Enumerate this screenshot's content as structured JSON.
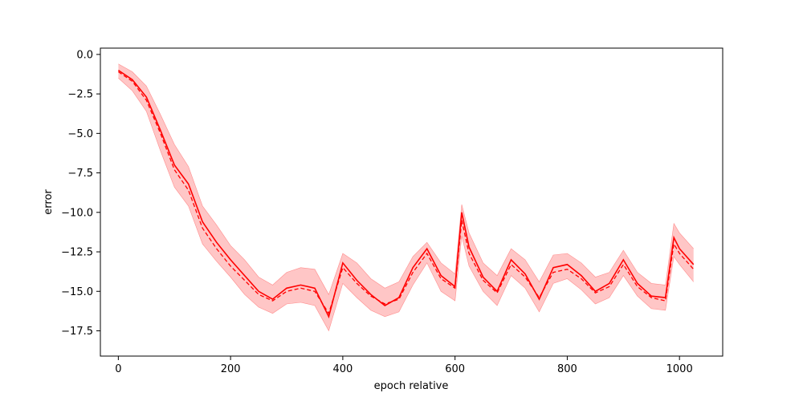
{
  "chart_data": {
    "type": "line",
    "title": "",
    "xlabel": "epoch relative",
    "ylabel": "error",
    "xlim": [
      -32,
      1077
    ],
    "ylim": [
      -19.1,
      0.4
    ],
    "xticks": [
      0,
      200,
      400,
      600,
      800,
      1000
    ],
    "xtick_labels": [
      "0",
      "200",
      "400",
      "600",
      "800",
      "1000"
    ],
    "yticks": [
      0.0,
      -2.5,
      -5.0,
      -7.5,
      -10.0,
      -12.5,
      -15.0,
      -17.5
    ],
    "ytick_labels": [
      "0.0",
      "−2.5",
      "−5.0",
      "−7.5",
      "−10.0",
      "−12.5",
      "−15.0",
      "−17.5"
    ],
    "grid": false,
    "colors": {
      "main": "#ff0000",
      "band": "#ffbcbc",
      "thin": "#ff6a6a"
    },
    "x": [
      0,
      25,
      50,
      75,
      100,
      125,
      150,
      175,
      200,
      225,
      250,
      275,
      300,
      325,
      350,
      375,
      400,
      425,
      450,
      475,
      500,
      525,
      550,
      575,
      600,
      612,
      625,
      650,
      675,
      700,
      725,
      750,
      775,
      800,
      825,
      850,
      875,
      900,
      925,
      950,
      975,
      990,
      1000,
      1025
    ],
    "series": [
      {
        "role": "median",
        "values": [
          -1.0,
          -1.6,
          -2.7,
          -4.8,
          -7.0,
          -8.2,
          -10.6,
          -11.9,
          -13.0,
          -14.0,
          -15.0,
          -15.5,
          -14.8,
          -14.6,
          -14.8,
          -16.6,
          -13.2,
          -14.3,
          -15.2,
          -15.9,
          -15.4,
          -13.5,
          -12.3,
          -14.0,
          -14.7,
          -10.0,
          -12.2,
          -14.1,
          -15.0,
          -13.0,
          -13.9,
          -15.5,
          -13.5,
          -13.3,
          -14.0,
          -15.0,
          -14.5,
          -13.0,
          -14.5,
          -15.3,
          -15.4,
          -11.6,
          -12.3,
          -13.3
        ]
      },
      {
        "role": "mean",
        "values": [
          -1.1,
          -1.7,
          -2.9,
          -5.0,
          -7.3,
          -8.6,
          -11.0,
          -12.3,
          -13.4,
          -14.3,
          -15.2,
          -15.6,
          -15.0,
          -14.8,
          -15.0,
          -16.4,
          -13.5,
          -14.5,
          -15.3,
          -15.8,
          -15.5,
          -13.8,
          -12.6,
          -14.2,
          -14.8,
          -10.5,
          -12.6,
          -14.3,
          -15.1,
          -13.3,
          -14.1,
          -15.4,
          -13.8,
          -13.6,
          -14.2,
          -15.1,
          -14.7,
          -13.3,
          -14.7,
          -15.4,
          -15.6,
          -12.0,
          -12.6,
          -13.6
        ]
      },
      {
        "role": "band-upper",
        "values": [
          -0.6,
          -1.1,
          -2.0,
          -3.8,
          -5.7,
          -7.1,
          -9.6,
          -10.8,
          -12.1,
          -13.0,
          -14.1,
          -14.6,
          -13.8,
          -13.5,
          -13.6,
          -15.2,
          -12.6,
          -13.2,
          -14.2,
          -14.8,
          -14.4,
          -12.8,
          -11.9,
          -13.2,
          -13.9,
          -9.5,
          -11.3,
          -13.2,
          -14.0,
          -12.3,
          -13.0,
          -14.4,
          -12.7,
          -12.6,
          -13.2,
          -14.1,
          -13.8,
          -12.4,
          -13.8,
          -14.5,
          -14.6,
          -10.7,
          -11.3,
          -12.3
        ]
      },
      {
        "role": "band-lower",
        "values": [
          -1.5,
          -2.3,
          -3.6,
          -6.1,
          -8.4,
          -9.6,
          -12.0,
          -13.1,
          -14.1,
          -15.2,
          -16.0,
          -16.4,
          -15.8,
          -15.7,
          -15.9,
          -17.5,
          -14.5,
          -15.4,
          -16.2,
          -16.6,
          -16.3,
          -14.6,
          -13.2,
          -15.0,
          -15.6,
          -11.5,
          -13.4,
          -15.0,
          -15.9,
          -14.0,
          -14.8,
          -16.3,
          -14.5,
          -14.2,
          -14.9,
          -15.8,
          -15.4,
          -14.0,
          -15.3,
          -16.1,
          -16.2,
          -12.8,
          -13.3,
          -14.4
        ]
      }
    ]
  }
}
